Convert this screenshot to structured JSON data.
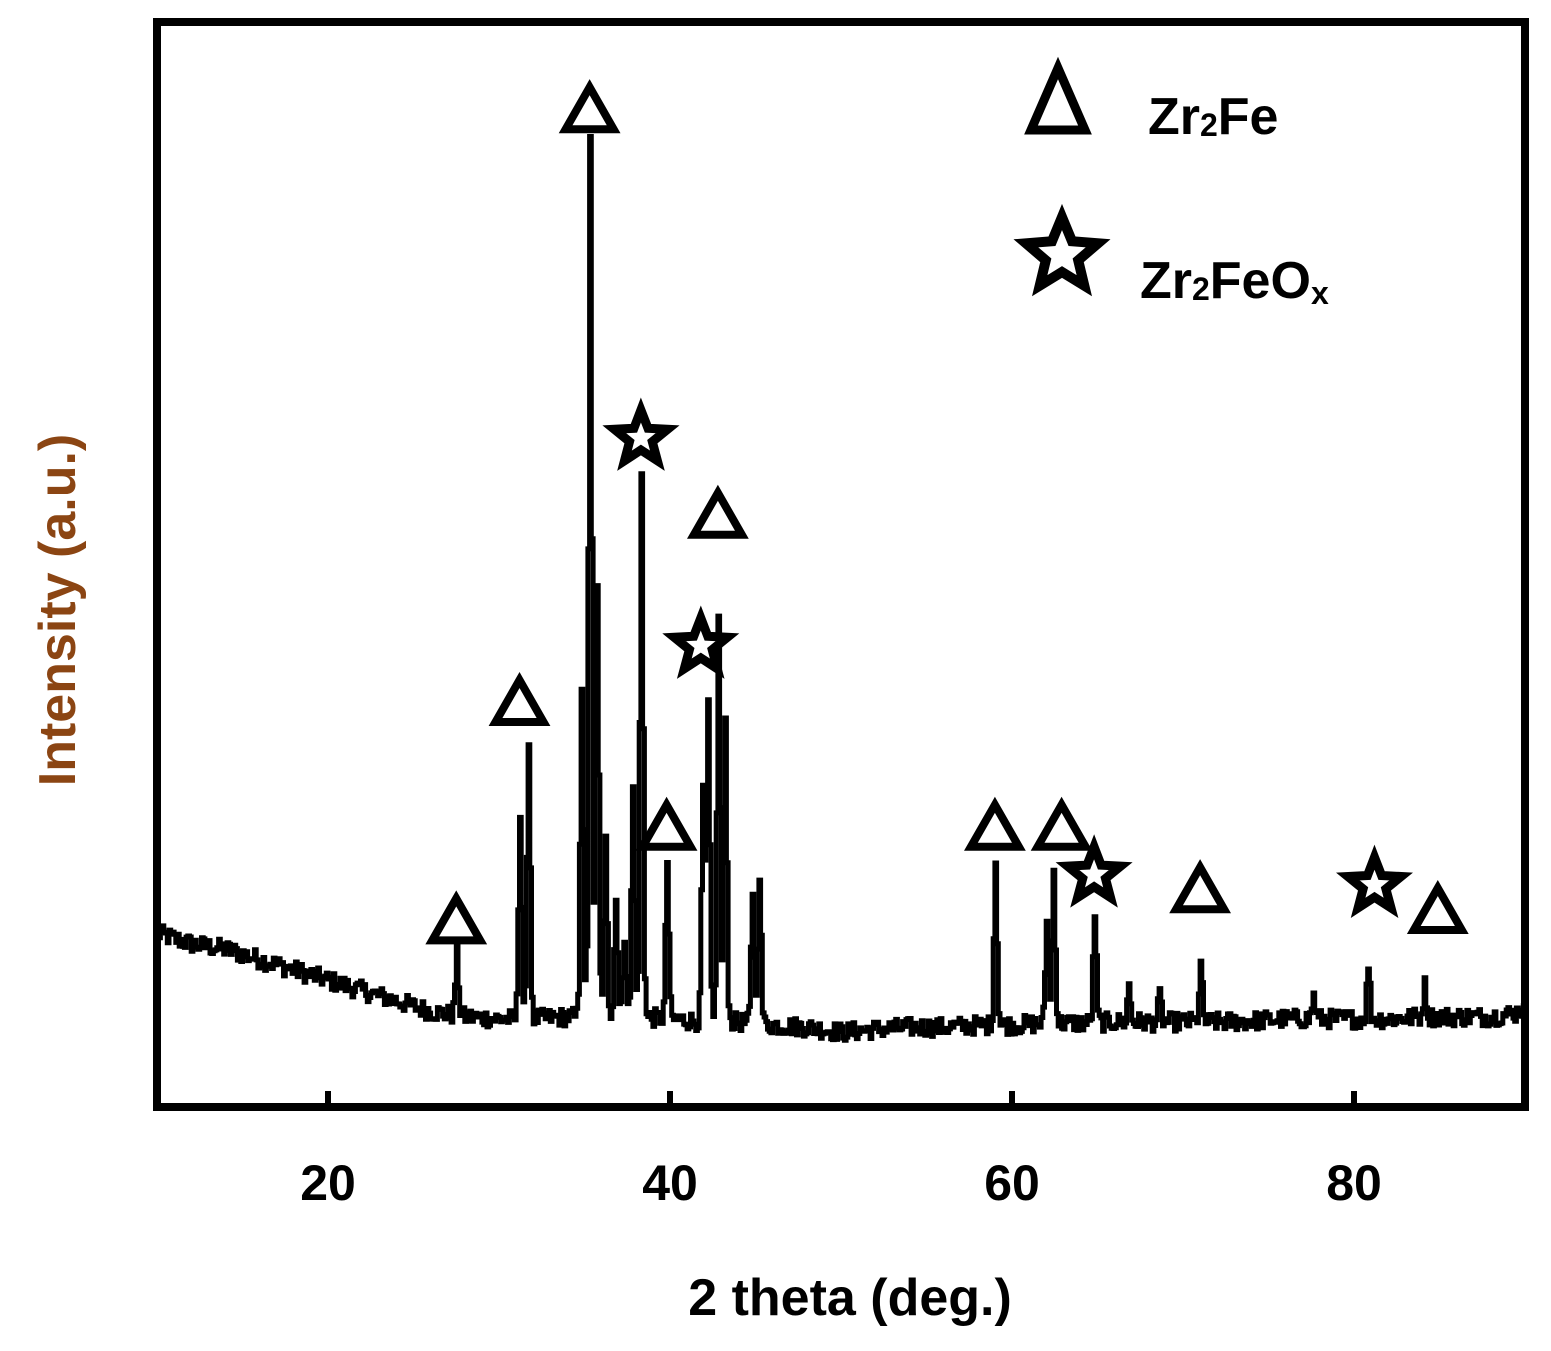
{
  "chart_data": {
    "type": "line",
    "title": "",
    "xlabel": "2 theta (deg.)",
    "ylabel": "Intensity (a.u.)",
    "xlim": [
      10,
      90
    ],
    "ylim": [
      0,
      100
    ],
    "xticks": [
      20,
      40,
      60,
      80
    ],
    "grid": false,
    "line_color": "#000000",
    "ylabel_color": "#8B4513",
    "legend": {
      "placement": "top-right",
      "entries": [
        {
          "marker": "triangle",
          "base": "Zr",
          "sub": "2",
          "rest": "Fe",
          "sub2": ""
        },
        {
          "marker": "star",
          "base": "Zr",
          "sub": "2",
          "rest": "FeO",
          "sub2": "x"
        }
      ]
    },
    "baseline": [
      [
        10,
        16
      ],
      [
        12,
        15
      ],
      [
        14,
        14.5
      ],
      [
        16,
        13.5
      ],
      [
        18,
        12.5
      ],
      [
        20,
        11.5
      ],
      [
        22,
        10.5
      ],
      [
        24,
        9.5
      ],
      [
        26,
        8.5
      ],
      [
        28,
        8
      ],
      [
        30,
        7.8
      ],
      [
        32,
        7.8
      ],
      [
        34,
        8
      ],
      [
        36,
        8
      ],
      [
        38,
        8
      ],
      [
        40,
        7.8
      ],
      [
        42,
        7.5
      ],
      [
        44,
        7.5
      ],
      [
        46,
        7.2
      ],
      [
        48,
        7
      ],
      [
        50,
        6.5
      ],
      [
        52,
        6.8
      ],
      [
        54,
        7
      ],
      [
        56,
        7
      ],
      [
        58,
        7.2
      ],
      [
        60,
        7.2
      ],
      [
        62,
        7.4
      ],
      [
        64,
        7.4
      ],
      [
        66,
        7.5
      ],
      [
        68,
        7.5
      ],
      [
        70,
        7.5
      ],
      [
        72,
        7.5
      ],
      [
        74,
        7.6
      ],
      [
        76,
        7.8
      ],
      [
        78,
        7.8
      ],
      [
        80,
        7.8
      ],
      [
        82,
        7.8
      ],
      [
        84,
        8
      ],
      [
        86,
        8
      ],
      [
        88,
        8
      ],
      [
        90,
        8.5
      ]
    ],
    "peaks": [
      {
        "x": 27.5,
        "y": 14
      },
      {
        "x": 31.2,
        "y": 28
      },
      {
        "x": 31.7,
        "y": 35
      },
      {
        "x": 34.8,
        "y": 40
      },
      {
        "x": 35.3,
        "y": 92
      },
      {
        "x": 35.7,
        "y": 50
      },
      {
        "x": 36.2,
        "y": 26
      },
      {
        "x": 36.8,
        "y": 20
      },
      {
        "x": 37.3,
        "y": 16
      },
      {
        "x": 37.8,
        "y": 30
      },
      {
        "x": 38.3,
        "y": 60
      },
      {
        "x": 39.8,
        "y": 23
      },
      {
        "x": 41.9,
        "y": 30
      },
      {
        "x": 42.2,
        "y": 38
      },
      {
        "x": 42.8,
        "y": 46
      },
      {
        "x": 43.2,
        "y": 36
      },
      {
        "x": 44.8,
        "y": 20
      },
      {
        "x": 45.2,
        "y": 22
      },
      {
        "x": 59.0,
        "y": 23
      },
      {
        "x": 62.0,
        "y": 17
      },
      {
        "x": 62.4,
        "y": 22
      },
      {
        "x": 64.8,
        "y": 18
      },
      {
        "x": 66.8,
        "y": 11
      },
      {
        "x": 68.6,
        "y": 10
      },
      {
        "x": 71.0,
        "y": 13
      },
      {
        "x": 77.6,
        "y": 10
      },
      {
        "x": 80.8,
        "y": 13
      },
      {
        "x": 84.1,
        "y": 11
      },
      {
        "x": 89.7,
        "y": 9
      }
    ],
    "peak_markers": [
      {
        "x": 27.5,
        "y": 14,
        "type": "triangle"
      },
      {
        "x": 31.2,
        "y": 35,
        "type": "triangle"
      },
      {
        "x": 35.3,
        "y": 92,
        "type": "triangle"
      },
      {
        "x": 38.3,
        "y": 60,
        "type": "star"
      },
      {
        "x": 39.8,
        "y": 23,
        "type": "triangle"
      },
      {
        "x": 41.8,
        "y": 40,
        "type": "star"
      },
      {
        "x": 42.8,
        "y": 53,
        "type": "triangle"
      },
      {
        "x": 59.0,
        "y": 23,
        "type": "triangle"
      },
      {
        "x": 62.9,
        "y": 23,
        "type": "triangle"
      },
      {
        "x": 64.8,
        "y": 18,
        "type": "star"
      },
      {
        "x": 71.0,
        "y": 17,
        "type": "triangle"
      },
      {
        "x": 81.2,
        "y": 17,
        "type": "star"
      },
      {
        "x": 84.9,
        "y": 15,
        "type": "triangle"
      }
    ]
  }
}
